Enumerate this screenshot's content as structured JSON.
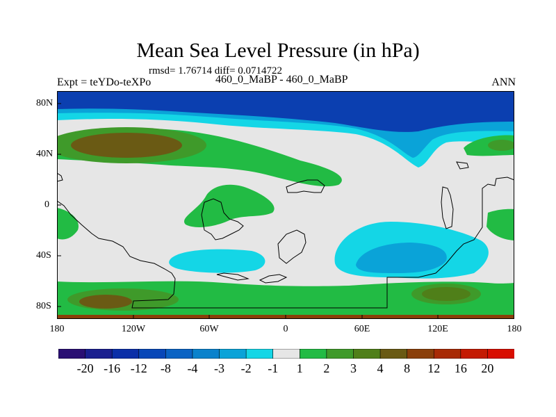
{
  "title": "Mean Sea Level Pressure (in hPa)",
  "stats": "rmsd= 1.76714 diff= 0.0714722",
  "expt": "Expt = teYDo-teXPo",
  "subtitle": "460_0_MaBP - 460_0_MaBP",
  "season": "ANN",
  "lat_labels": [
    "80N",
    "40N",
    "0",
    "40S",
    "80S"
  ],
  "lon_labels": [
    "180",
    "120W",
    "60W",
    "0",
    "60E",
    "120E",
    "180"
  ],
  "colorbar": {
    "labels": [
      "-20",
      "-16",
      "-12",
      "-8",
      "-4",
      "-3",
      "-2",
      "-1",
      "1",
      "2",
      "3",
      "4",
      "8",
      "12",
      "16",
      "20"
    ],
    "colors": [
      "#2a0f73",
      "#1a1f8f",
      "#0b2fa8",
      "#0847b8",
      "#0a63c4",
      "#0a82cc",
      "#0aa3d8",
      "#14d6e6",
      "#e6e6e6",
      "#22bb44",
      "#3f9a2a",
      "#4f7f19",
      "#6a5a14",
      "#8a3f0a",
      "#a82a05",
      "#c41a02",
      "#d80e00"
    ]
  },
  "colors": {
    "ocean_neg_deep": "#0b3fb0",
    "neg_mid": "#0a82cc",
    "neg_light": "#14d6e6",
    "neutral": "#e6e6e6",
    "pos_light": "#22bb44",
    "pos_mid": "#3f9a2a",
    "pos_high": "#6a5a14"
  }
}
